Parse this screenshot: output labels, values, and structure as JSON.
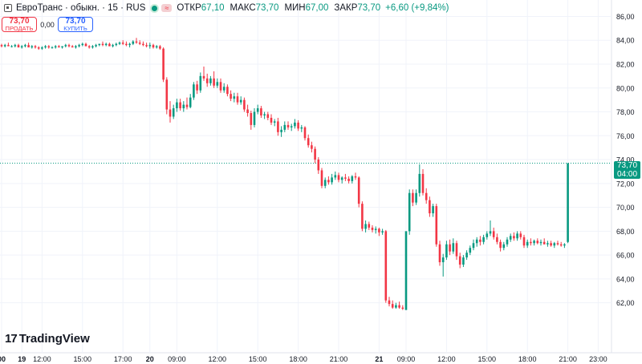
{
  "header": {
    "title": "ЕвроТранс · обыкн. · 15 · RUS",
    "ohlc": [
      {
        "key": "ОТКР",
        "value": "67,10"
      },
      {
        "key": "МАКС",
        "value": "73,70"
      },
      {
        "key": "МИН",
        "value": "67,00"
      },
      {
        "key": "ЗАКР",
        "value": "73,70"
      }
    ],
    "change": "+6,60 (+9,84%)",
    "icons": [
      "chart-symbol-icon",
      "market-open-dot-icon",
      "equals-icon"
    ]
  },
  "trade": {
    "sell_price": "73,70",
    "sell_label": "ПРОДАТЬ",
    "spread": "0,00",
    "buy_price": "73,70",
    "buy_label": "КУПИТЬ"
  },
  "last_price": {
    "value": "73,70",
    "countdown": "04:00"
  },
  "logo_text": "TradingView",
  "colors": {
    "up": "#089981",
    "down": "#f23645",
    "grid": "#f0f3fa",
    "text": "#131722",
    "price_line": "#089981"
  },
  "chart_data": {
    "type": "candlestick",
    "ylim": [
      60.5,
      86.5
    ],
    "y_ticks": [
      62,
      64,
      66,
      68,
      70,
      72,
      74,
      76,
      78,
      80,
      82,
      84,
      86
    ],
    "y_tick_labels": [
      "62,00",
      "64,00",
      "66,00",
      "68,00",
      "70,00",
      "72,00",
      "74,00",
      "76,00",
      "78,00",
      "80,00",
      "82,00",
      "84,00",
      "86,00"
    ],
    "x_tick_labels": [
      {
        "i": 0,
        "label": "00"
      },
      {
        "i": 6,
        "label": "19"
      },
      {
        "i": 12,
        "label": "12:00"
      },
      {
        "i": 24,
        "label": "15:00"
      },
      {
        "i": 36,
        "label": "17:00"
      },
      {
        "i": 44,
        "label": "20"
      },
      {
        "i": 52,
        "label": "09:00"
      },
      {
        "i": 64,
        "label": "12:00"
      },
      {
        "i": 76,
        "label": "15:00"
      },
      {
        "i": 88,
        "label": "18:00"
      },
      {
        "i": 100,
        "label": "21:00"
      },
      {
        "i": 112,
        "label": "21"
      },
      {
        "i": 120,
        "label": "09:00"
      },
      {
        "i": 132,
        "label": "12:00"
      },
      {
        "i": 144,
        "label": "15:00"
      },
      {
        "i": 156,
        "label": "18:00"
      },
      {
        "i": 168,
        "label": "21:00"
      },
      {
        "i": 177,
        "label": "23:00"
      }
    ],
    "candles": [
      {
        "o": 83.6,
        "h": 83.7,
        "l": 83.4,
        "c": 83.5
      },
      {
        "o": 83.5,
        "h": 83.7,
        "l": 83.4,
        "c": 83.6
      },
      {
        "o": 83.6,
        "h": 83.8,
        "l": 83.5,
        "c": 83.5
      },
      {
        "o": 83.5,
        "h": 83.6,
        "l": 83.4,
        "c": 83.5
      },
      {
        "o": 83.5,
        "h": 83.7,
        "l": 83.4,
        "c": 83.6
      },
      {
        "o": 83.6,
        "h": 83.7,
        "l": 83.4,
        "c": 83.4
      },
      {
        "o": 83.4,
        "h": 83.6,
        "l": 83.3,
        "c": 83.5
      },
      {
        "o": 83.5,
        "h": 83.7,
        "l": 83.4,
        "c": 83.6
      },
      {
        "o": 83.6,
        "h": 83.8,
        "l": 83.5,
        "c": 83.4
      },
      {
        "o": 83.4,
        "h": 83.6,
        "l": 83.3,
        "c": 83.5
      },
      {
        "o": 83.5,
        "h": 83.6,
        "l": 83.3,
        "c": 83.4
      },
      {
        "o": 83.4,
        "h": 83.5,
        "l": 83.2,
        "c": 83.3
      },
      {
        "o": 83.3,
        "h": 83.5,
        "l": 83.2,
        "c": 83.4
      },
      {
        "o": 83.4,
        "h": 83.6,
        "l": 83.3,
        "c": 83.5
      },
      {
        "o": 83.5,
        "h": 83.6,
        "l": 83.3,
        "c": 83.4
      },
      {
        "o": 83.4,
        "h": 83.5,
        "l": 83.3,
        "c": 83.4
      },
      {
        "o": 83.4,
        "h": 83.6,
        "l": 83.3,
        "c": 83.5
      },
      {
        "o": 83.5,
        "h": 83.6,
        "l": 83.4,
        "c": 83.4
      },
      {
        "o": 83.4,
        "h": 83.5,
        "l": 83.3,
        "c": 83.5
      },
      {
        "o": 83.5,
        "h": 83.7,
        "l": 83.4,
        "c": 83.6
      },
      {
        "o": 83.6,
        "h": 83.7,
        "l": 83.4,
        "c": 83.5
      },
      {
        "o": 83.5,
        "h": 83.6,
        "l": 83.4,
        "c": 83.4
      },
      {
        "o": 83.4,
        "h": 83.6,
        "l": 83.3,
        "c": 83.5
      },
      {
        "o": 83.5,
        "h": 83.7,
        "l": 83.4,
        "c": 83.6
      },
      {
        "o": 83.6,
        "h": 83.8,
        "l": 83.5,
        "c": 83.7
      },
      {
        "o": 83.7,
        "h": 83.8,
        "l": 83.5,
        "c": 83.5
      },
      {
        "o": 83.5,
        "h": 83.6,
        "l": 83.3,
        "c": 83.4
      },
      {
        "o": 83.4,
        "h": 83.6,
        "l": 83.3,
        "c": 83.5
      },
      {
        "o": 83.5,
        "h": 83.7,
        "l": 83.4,
        "c": 83.6
      },
      {
        "o": 83.6,
        "h": 83.7,
        "l": 83.5,
        "c": 83.7
      },
      {
        "o": 83.7,
        "h": 83.9,
        "l": 83.5,
        "c": 83.6
      },
      {
        "o": 83.6,
        "h": 83.8,
        "l": 83.5,
        "c": 83.7
      },
      {
        "o": 83.7,
        "h": 83.8,
        "l": 83.5,
        "c": 83.5
      },
      {
        "o": 83.5,
        "h": 83.7,
        "l": 83.4,
        "c": 83.6
      },
      {
        "o": 83.6,
        "h": 83.8,
        "l": 83.5,
        "c": 83.7
      },
      {
        "o": 83.7,
        "h": 83.9,
        "l": 83.6,
        "c": 83.8
      },
      {
        "o": 83.8,
        "h": 84.0,
        "l": 83.6,
        "c": 83.7
      },
      {
        "o": 83.7,
        "h": 83.9,
        "l": 83.5,
        "c": 83.6
      },
      {
        "o": 83.6,
        "h": 83.8,
        "l": 83.4,
        "c": 83.7
      },
      {
        "o": 83.7,
        "h": 84.0,
        "l": 83.6,
        "c": 83.9
      },
      {
        "o": 83.9,
        "h": 84.2,
        "l": 83.7,
        "c": 83.8
      },
      {
        "o": 83.8,
        "h": 84.0,
        "l": 83.6,
        "c": 83.7
      },
      {
        "o": 83.7,
        "h": 83.9,
        "l": 83.5,
        "c": 83.6
      },
      {
        "o": 83.6,
        "h": 83.8,
        "l": 83.4,
        "c": 83.5
      },
      {
        "o": 83.5,
        "h": 83.8,
        "l": 83.3,
        "c": 83.6
      },
      {
        "o": 83.6,
        "h": 83.7,
        "l": 83.3,
        "c": 83.4
      },
      {
        "o": 83.4,
        "h": 83.6,
        "l": 83.3,
        "c": 83.5
      },
      {
        "o": 83.5,
        "h": 83.6,
        "l": 83.2,
        "c": 83.3
      },
      {
        "o": 83.3,
        "h": 83.4,
        "l": 80.5,
        "c": 80.7
      },
      {
        "o": 80.7,
        "h": 80.9,
        "l": 77.8,
        "c": 78.2
      },
      {
        "o": 78.2,
        "h": 78.9,
        "l": 77.1,
        "c": 77.6
      },
      {
        "o": 77.6,
        "h": 78.6,
        "l": 77.4,
        "c": 78.3
      },
      {
        "o": 78.3,
        "h": 79.1,
        "l": 78.0,
        "c": 78.8
      },
      {
        "o": 78.8,
        "h": 79.1,
        "l": 78.1,
        "c": 78.3
      },
      {
        "o": 78.3,
        "h": 78.9,
        "l": 78.0,
        "c": 78.6
      },
      {
        "o": 78.6,
        "h": 79.2,
        "l": 78.2,
        "c": 78.4
      },
      {
        "o": 78.4,
        "h": 79.5,
        "l": 78.3,
        "c": 79.2
      },
      {
        "o": 79.2,
        "h": 80.5,
        "l": 79.0,
        "c": 80.3
      },
      {
        "o": 80.3,
        "h": 80.6,
        "l": 79.5,
        "c": 79.8
      },
      {
        "o": 79.8,
        "h": 81.3,
        "l": 79.6,
        "c": 81.0
      },
      {
        "o": 81.0,
        "h": 81.8,
        "l": 80.6,
        "c": 80.8
      },
      {
        "o": 80.8,
        "h": 81.2,
        "l": 80.1,
        "c": 80.4
      },
      {
        "o": 80.4,
        "h": 81.0,
        "l": 80.2,
        "c": 80.8
      },
      {
        "o": 80.8,
        "h": 81.4,
        "l": 80.0,
        "c": 80.2
      },
      {
        "o": 80.2,
        "h": 80.8,
        "l": 80.0,
        "c": 80.5
      },
      {
        "o": 80.5,
        "h": 80.8,
        "l": 79.6,
        "c": 79.8
      },
      {
        "o": 79.8,
        "h": 80.4,
        "l": 79.6,
        "c": 80.1
      },
      {
        "o": 80.1,
        "h": 80.3,
        "l": 79.3,
        "c": 79.5
      },
      {
        "o": 79.5,
        "h": 79.8,
        "l": 78.9,
        "c": 79.1
      },
      {
        "o": 79.1,
        "h": 79.6,
        "l": 78.8,
        "c": 79.3
      },
      {
        "o": 79.3,
        "h": 79.6,
        "l": 78.6,
        "c": 78.8
      },
      {
        "o": 78.8,
        "h": 79.3,
        "l": 78.6,
        "c": 79.0
      },
      {
        "o": 79.0,
        "h": 79.2,
        "l": 78.0,
        "c": 78.2
      },
      {
        "o": 78.2,
        "h": 78.6,
        "l": 77.6,
        "c": 77.9
      },
      {
        "o": 77.9,
        "h": 78.1,
        "l": 76.5,
        "c": 76.9
      },
      {
        "o": 76.9,
        "h": 78.3,
        "l": 76.7,
        "c": 78.0
      },
      {
        "o": 78.0,
        "h": 78.6,
        "l": 77.8,
        "c": 78.3
      },
      {
        "o": 78.3,
        "h": 78.5,
        "l": 77.5,
        "c": 77.7
      },
      {
        "o": 77.7,
        "h": 78.0,
        "l": 77.4,
        "c": 77.8
      },
      {
        "o": 77.8,
        "h": 78.0,
        "l": 77.3,
        "c": 77.5
      },
      {
        "o": 77.5,
        "h": 77.8,
        "l": 76.9,
        "c": 77.1
      },
      {
        "o": 77.1,
        "h": 77.4,
        "l": 76.8,
        "c": 77.2
      },
      {
        "o": 77.2,
        "h": 77.5,
        "l": 76.0,
        "c": 76.3
      },
      {
        "o": 76.3,
        "h": 76.8,
        "l": 75.9,
        "c": 76.5
      },
      {
        "o": 76.5,
        "h": 77.2,
        "l": 76.3,
        "c": 76.9
      },
      {
        "o": 76.9,
        "h": 77.2,
        "l": 76.5,
        "c": 76.7
      },
      {
        "o": 76.7,
        "h": 77.0,
        "l": 76.4,
        "c": 76.8
      },
      {
        "o": 76.8,
        "h": 77.4,
        "l": 76.6,
        "c": 77.1
      },
      {
        "o": 77.1,
        "h": 77.3,
        "l": 76.4,
        "c": 76.6
      },
      {
        "o": 76.6,
        "h": 76.9,
        "l": 76.3,
        "c": 76.7
      },
      {
        "o": 76.7,
        "h": 76.8,
        "l": 75.6,
        "c": 75.8
      },
      {
        "o": 75.8,
        "h": 76.1,
        "l": 75.0,
        "c": 75.2
      },
      {
        "o": 75.2,
        "h": 75.5,
        "l": 74.6,
        "c": 74.9
      },
      {
        "o": 74.9,
        "h": 75.1,
        "l": 73.7,
        "c": 74.0
      },
      {
        "o": 74.0,
        "h": 74.2,
        "l": 72.8,
        "c": 73.1
      },
      {
        "o": 73.1,
        "h": 73.3,
        "l": 71.6,
        "c": 71.8
      },
      {
        "o": 71.8,
        "h": 72.5,
        "l": 71.6,
        "c": 72.3
      },
      {
        "o": 72.3,
        "h": 72.6,
        "l": 71.9,
        "c": 72.1
      },
      {
        "o": 72.1,
        "h": 72.8,
        "l": 71.9,
        "c": 72.5
      },
      {
        "o": 72.5,
        "h": 73.0,
        "l": 72.3,
        "c": 72.7
      },
      {
        "o": 72.7,
        "h": 72.9,
        "l": 72.1,
        "c": 72.3
      },
      {
        "o": 72.3,
        "h": 72.6,
        "l": 72.0,
        "c": 72.5
      },
      {
        "o": 72.5,
        "h": 72.8,
        "l": 72.2,
        "c": 72.4
      },
      {
        "o": 72.4,
        "h": 72.6,
        "l": 72.0,
        "c": 72.2
      },
      {
        "o": 72.2,
        "h": 72.7,
        "l": 72.0,
        "c": 72.6
      },
      {
        "o": 72.6,
        "h": 72.9,
        "l": 72.3,
        "c": 72.5
      },
      {
        "o": 72.5,
        "h": 72.6,
        "l": 70.0,
        "c": 70.3
      },
      {
        "o": 70.3,
        "h": 70.5,
        "l": 68.0,
        "c": 68.2
      },
      {
        "o": 68.2,
        "h": 68.9,
        "l": 67.9,
        "c": 68.6
      },
      {
        "o": 68.6,
        "h": 68.8,
        "l": 68.1,
        "c": 68.3
      },
      {
        "o": 68.3,
        "h": 68.5,
        "l": 67.9,
        "c": 68.1
      },
      {
        "o": 68.1,
        "h": 68.4,
        "l": 67.8,
        "c": 68.2
      },
      {
        "o": 68.2,
        "h": 68.3,
        "l": 67.6,
        "c": 67.9
      },
      {
        "o": 67.9,
        "h": 68.2,
        "l": 67.7,
        "c": 68.0
      },
      {
        "o": 68.0,
        "h": 68.1,
        "l": 62.0,
        "c": 62.2
      },
      {
        "o": 62.2,
        "h": 62.5,
        "l": 61.7,
        "c": 61.9
      },
      {
        "o": 61.9,
        "h": 62.2,
        "l": 61.5,
        "c": 61.6
      },
      {
        "o": 61.6,
        "h": 62.0,
        "l": 61.5,
        "c": 61.8
      },
      {
        "o": 61.8,
        "h": 62.1,
        "l": 61.5,
        "c": 61.6
      },
      {
        "o": 61.6,
        "h": 61.8,
        "l": 61.4,
        "c": 61.5
      },
      {
        "o": 61.4,
        "h": 68.0,
        "l": 61.4,
        "c": 68.0
      },
      {
        "o": 68.0,
        "h": 71.5,
        "l": 67.7,
        "c": 71.2
      },
      {
        "o": 71.2,
        "h": 71.5,
        "l": 70.1,
        "c": 70.4
      },
      {
        "o": 70.4,
        "h": 71.5,
        "l": 70.2,
        "c": 71.2
      },
      {
        "o": 71.2,
        "h": 73.6,
        "l": 70.9,
        "c": 72.8
      },
      {
        "o": 72.8,
        "h": 73.2,
        "l": 71.0,
        "c": 71.2
      },
      {
        "o": 71.2,
        "h": 71.6,
        "l": 70.3,
        "c": 70.6
      },
      {
        "o": 70.6,
        "h": 70.9,
        "l": 69.2,
        "c": 69.5
      },
      {
        "o": 69.5,
        "h": 70.3,
        "l": 69.2,
        "c": 70.1
      },
      {
        "o": 70.1,
        "h": 70.3,
        "l": 66.7,
        "c": 66.9
      },
      {
        "o": 66.9,
        "h": 67.2,
        "l": 65.1,
        "c": 65.4
      },
      {
        "o": 65.4,
        "h": 66.1,
        "l": 64.2,
        "c": 65.8
      },
      {
        "o": 65.8,
        "h": 67.2,
        "l": 65.6,
        "c": 66.9
      },
      {
        "o": 66.9,
        "h": 67.3,
        "l": 66.0,
        "c": 66.3
      },
      {
        "o": 66.3,
        "h": 67.4,
        "l": 66.1,
        "c": 67.0
      },
      {
        "o": 67.0,
        "h": 67.2,
        "l": 65.6,
        "c": 65.9
      },
      {
        "o": 65.9,
        "h": 66.2,
        "l": 64.9,
        "c": 65.2
      },
      {
        "o": 65.2,
        "h": 66.0,
        "l": 65.0,
        "c": 65.8
      },
      {
        "o": 65.8,
        "h": 66.4,
        "l": 65.6,
        "c": 66.2
      },
      {
        "o": 66.2,
        "h": 66.8,
        "l": 66.0,
        "c": 66.6
      },
      {
        "o": 66.6,
        "h": 67.3,
        "l": 66.4,
        "c": 67.0
      },
      {
        "o": 67.0,
        "h": 67.5,
        "l": 66.7,
        "c": 67.3
      },
      {
        "o": 67.3,
        "h": 67.6,
        "l": 66.8,
        "c": 67.1
      },
      {
        "o": 67.1,
        "h": 67.7,
        "l": 66.9,
        "c": 67.5
      },
      {
        "o": 67.5,
        "h": 68.0,
        "l": 67.3,
        "c": 67.8
      },
      {
        "o": 67.8,
        "h": 68.9,
        "l": 67.6,
        "c": 68.0
      },
      {
        "o": 68.0,
        "h": 68.3,
        "l": 67.3,
        "c": 67.5
      },
      {
        "o": 67.5,
        "h": 67.8,
        "l": 66.9,
        "c": 67.1
      },
      {
        "o": 67.1,
        "h": 67.3,
        "l": 66.3,
        "c": 66.6
      },
      {
        "o": 66.6,
        "h": 67.1,
        "l": 66.4,
        "c": 66.9
      },
      {
        "o": 66.9,
        "h": 67.5,
        "l": 66.7,
        "c": 67.3
      },
      {
        "o": 67.3,
        "h": 67.8,
        "l": 67.1,
        "c": 67.6
      },
      {
        "o": 67.6,
        "h": 67.9,
        "l": 67.2,
        "c": 67.4
      },
      {
        "o": 67.4,
        "h": 68.0,
        "l": 67.2,
        "c": 67.8
      },
      {
        "o": 67.8,
        "h": 68.0,
        "l": 67.3,
        "c": 67.5
      },
      {
        "o": 67.5,
        "h": 67.7,
        "l": 66.6,
        "c": 66.8
      },
      {
        "o": 66.8,
        "h": 67.3,
        "l": 66.6,
        "c": 67.1
      },
      {
        "o": 67.1,
        "h": 67.4,
        "l": 66.8,
        "c": 67.0
      },
      {
        "o": 67.0,
        "h": 67.3,
        "l": 66.8,
        "c": 67.2
      },
      {
        "o": 67.2,
        "h": 67.4,
        "l": 66.9,
        "c": 67.0
      },
      {
        "o": 67.0,
        "h": 67.3,
        "l": 66.8,
        "c": 67.1
      },
      {
        "o": 67.1,
        "h": 67.4,
        "l": 66.9,
        "c": 66.9
      },
      {
        "o": 66.9,
        "h": 67.2,
        "l": 66.7,
        "c": 67.0
      },
      {
        "o": 67.0,
        "h": 67.2,
        "l": 66.7,
        "c": 66.8
      },
      {
        "o": 66.8,
        "h": 67.1,
        "l": 66.6,
        "c": 67.0
      },
      {
        "o": 67.0,
        "h": 67.2,
        "l": 66.8,
        "c": 66.9
      },
      {
        "o": 66.9,
        "h": 67.1,
        "l": 66.7,
        "c": 66.8
      },
      {
        "o": 66.8,
        "h": 67.0,
        "l": 66.6,
        "c": 66.9
      },
      {
        "o": 67.1,
        "h": 73.7,
        "l": 67.0,
        "c": 73.7
      }
    ]
  }
}
